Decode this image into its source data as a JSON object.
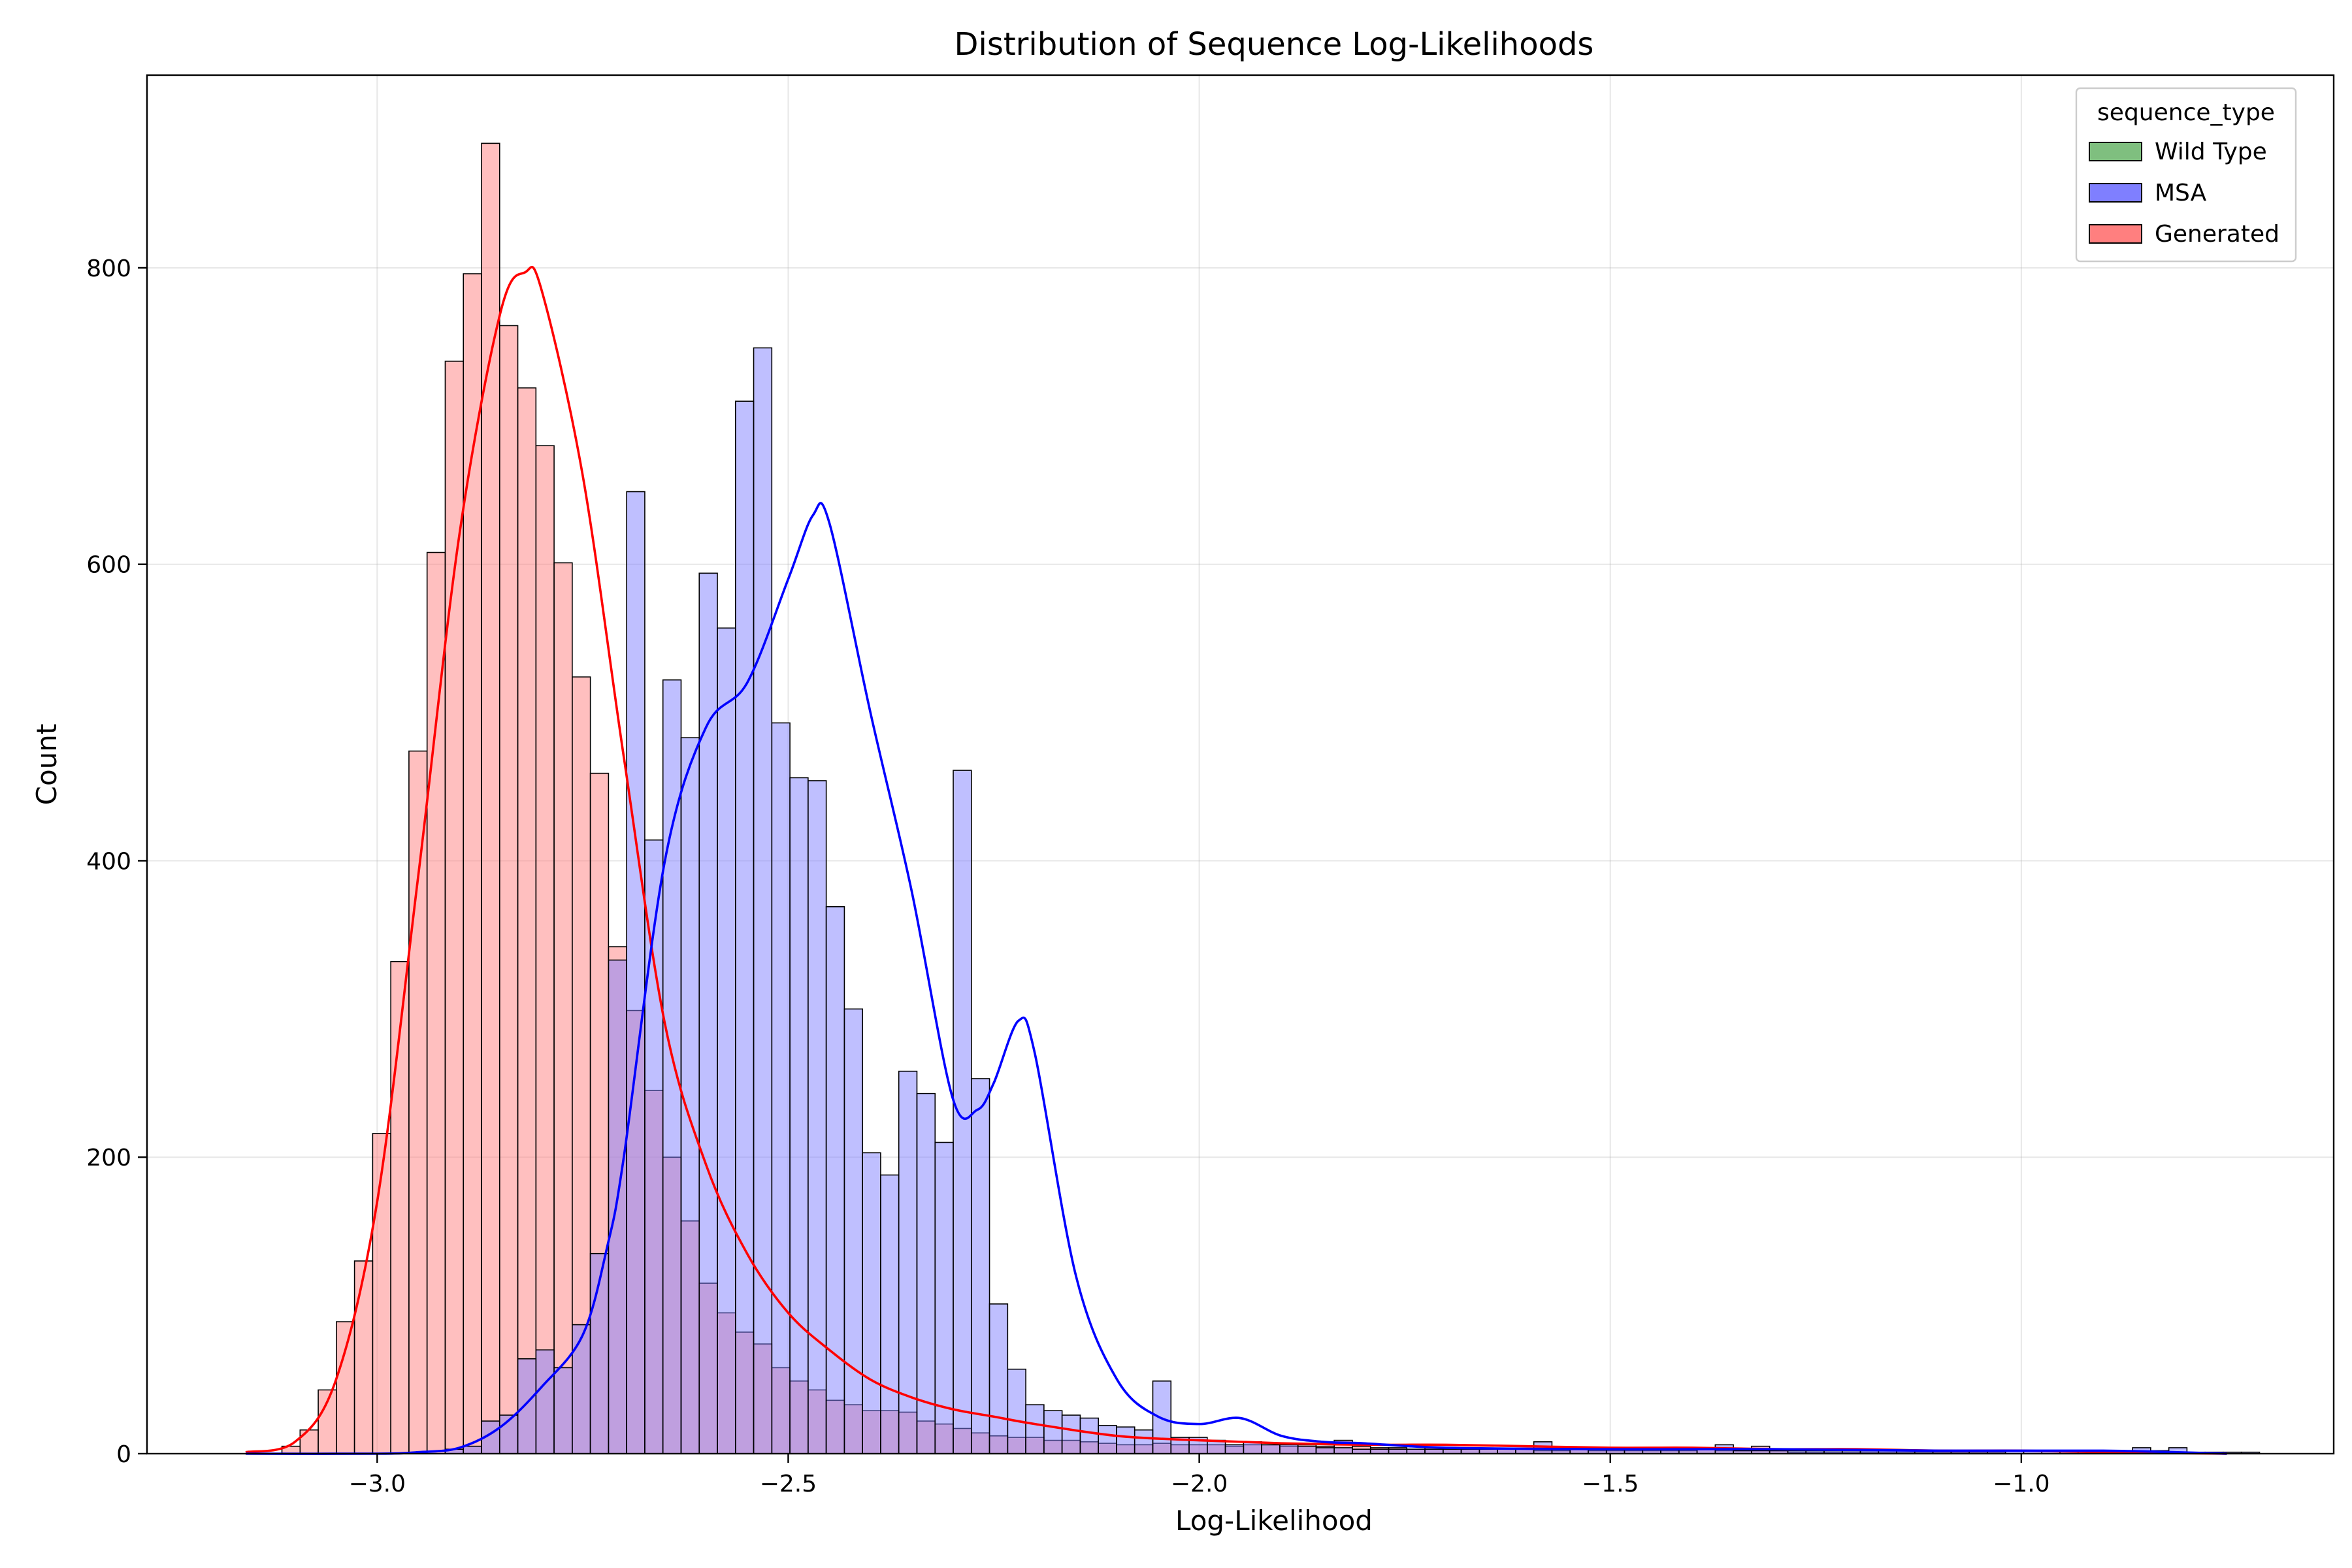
{
  "chart_data": {
    "type": "bar",
    "title": "Distribution of Sequence Log-Likelihoods",
    "xlabel": "Log-Likelihood",
    "ylabel": "Count",
    "xlim": [
      -3.28,
      -0.62
    ],
    "ylim": [
      0,
      930
    ],
    "xticks": [
      -3.0,
      -2.5,
      -2.0,
      -1.5,
      -1.0
    ],
    "xtick_labels": [
      "−3.0",
      "−2.5",
      "−2.0",
      "−1.5",
      "−1.0"
    ],
    "yticks": [
      0,
      200,
      400,
      600,
      800
    ],
    "ytick_labels": [
      "0",
      "200",
      "400",
      "600",
      "800"
    ],
    "grid": true,
    "legend": {
      "title": "sequence_type",
      "placement": "top-right",
      "entries": [
        {
          "name": "Wild Type",
          "color": "#7fbf7f"
        },
        {
          "name": "MSA",
          "color": "#7f7fff"
        },
        {
          "name": "Generated",
          "color": "#ff7f7f"
        }
      ]
    },
    "bin_start": -3.16,
    "bin_width": 0.02207,
    "series": [
      {
        "name": "Generated",
        "color": "#ff7f7f",
        "kde_color": "#ff0000",
        "values": [
          0,
          0,
          5,
          16,
          43,
          89,
          130,
          216,
          332,
          474,
          608,
          737,
          796,
          884,
          761,
          719,
          680,
          601,
          524,
          459,
          342,
          299,
          245,
          200,
          157,
          115,
          95,
          82,
          74,
          58,
          49,
          43,
          36,
          33,
          29,
          29,
          28,
          22,
          20,
          17,
          14,
          12,
          11,
          11,
          9,
          9,
          8,
          7,
          6,
          6,
          7,
          6,
          6,
          6,
          5,
          6,
          6,
          5,
          6,
          5,
          9,
          5,
          4,
          4,
          3,
          4,
          4,
          4,
          3,
          3,
          3,
          2,
          2,
          3,
          2,
          2,
          2,
          2,
          2,
          2,
          4,
          2,
          2,
          5,
          2,
          1,
          1,
          1,
          1,
          1,
          1,
          1,
          1,
          1,
          1,
          1,
          1,
          0,
          0,
          0,
          0,
          0,
          0,
          0,
          0,
          0,
          0,
          0,
          0,
          0,
          0
        ],
        "kde_x": [
          -3.16,
          -3.1,
          -3.05,
          -3.0,
          -2.95,
          -2.9,
          -2.85,
          -2.82,
          -2.8,
          -2.75,
          -2.7,
          -2.65,
          -2.6,
          -2.55,
          -2.5,
          -2.45,
          -2.4,
          -2.35,
          -2.3,
          -2.25,
          -2.2,
          -2.1,
          -2.0,
          -1.9,
          -1.8,
          -1.7,
          -1.6,
          -1.5,
          -1.4,
          -1.3,
          -1.2,
          -1.1,
          -1.0,
          -0.9,
          -0.75
        ],
        "kde_y": [
          1,
          8,
          50,
          170,
          390,
          620,
          770,
          797,
          785,
          660,
          470,
          290,
          195,
          135,
          95,
          70,
          50,
          38,
          30,
          25,
          20,
          12,
          9,
          7,
          6,
          6,
          5,
          4,
          4,
          3,
          3,
          2,
          2,
          1,
          0
        ]
      },
      {
        "name": "MSA",
        "color": "#7f7fff",
        "kde_color": "#0000ff",
        "values": [
          0,
          0,
          0,
          0,
          0,
          0,
          0,
          0,
          0,
          0,
          0,
          3,
          5,
          22,
          26,
          64,
          70,
          58,
          87,
          135,
          333,
          649,
          414,
          522,
          483,
          594,
          557,
          710,
          746,
          493,
          456,
          454,
          369,
          300,
          203,
          188,
          258,
          243,
          210,
          461,
          253,
          101,
          57,
          33,
          29,
          26,
          24,
          19,
          18,
          16,
          49,
          11,
          11,
          9,
          6,
          8,
          6,
          6,
          5,
          4,
          4,
          3,
          3,
          3,
          3,
          3,
          3,
          3,
          3,
          3,
          3,
          8,
          3,
          3,
          3,
          3,
          3,
          3,
          3,
          3,
          3,
          6,
          2,
          2,
          2,
          2,
          2,
          2,
          2,
          2,
          2,
          2,
          2,
          2,
          2,
          2,
          2,
          2,
          2,
          2,
          2,
          2,
          2,
          2,
          4,
          2,
          4,
          1,
          1,
          1,
          1
        ],
        "kde_x": [
          -3.16,
          -3.0,
          -2.95,
          -2.9,
          -2.85,
          -2.8,
          -2.75,
          -2.72,
          -2.7,
          -2.65,
          -2.6,
          -2.55,
          -2.5,
          -2.47,
          -2.45,
          -2.4,
          -2.35,
          -2.3,
          -2.27,
          -2.25,
          -2.22,
          -2.2,
          -2.15,
          -2.1,
          -2.05,
          -2.0,
          -1.95,
          -1.9,
          -1.85,
          -1.8,
          -1.7,
          -1.5,
          -1.3,
          -1.1,
          -0.9,
          -0.75
        ],
        "kde_y": [
          0,
          0,
          1,
          4,
          18,
          45,
          80,
          140,
          200,
          400,
          490,
          520,
          590,
          633,
          628,
          500,
          380,
          240,
          232,
          250,
          292,
          270,
          120,
          50,
          25,
          20,
          24,
          12,
          8,
          7,
          4,
          3,
          3,
          2,
          2,
          0
        ]
      }
    ]
  }
}
